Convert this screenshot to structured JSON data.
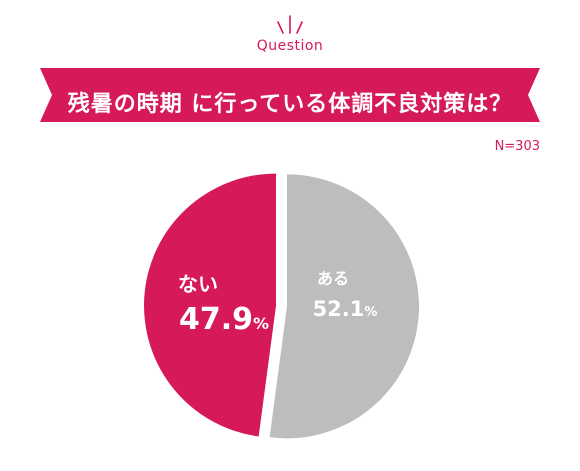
{
  "header": {
    "kicker": "Question",
    "title": "残暑の時期 に行っている体調不良対策は？",
    "sample_size": "N=303"
  },
  "colors": {
    "accent": "#d6195a",
    "gray": "#bdbdbd"
  },
  "chart_data": {
    "type": "pie",
    "title": "残暑の時期 に行っている体調不良対策は？",
    "sample_size": "N=303",
    "slices": [
      {
        "label": "ない",
        "value": 47.9,
        "color": "#d6195a"
      },
      {
        "label": "ある",
        "value": 52.1,
        "color": "#bdbdbd"
      }
    ]
  }
}
